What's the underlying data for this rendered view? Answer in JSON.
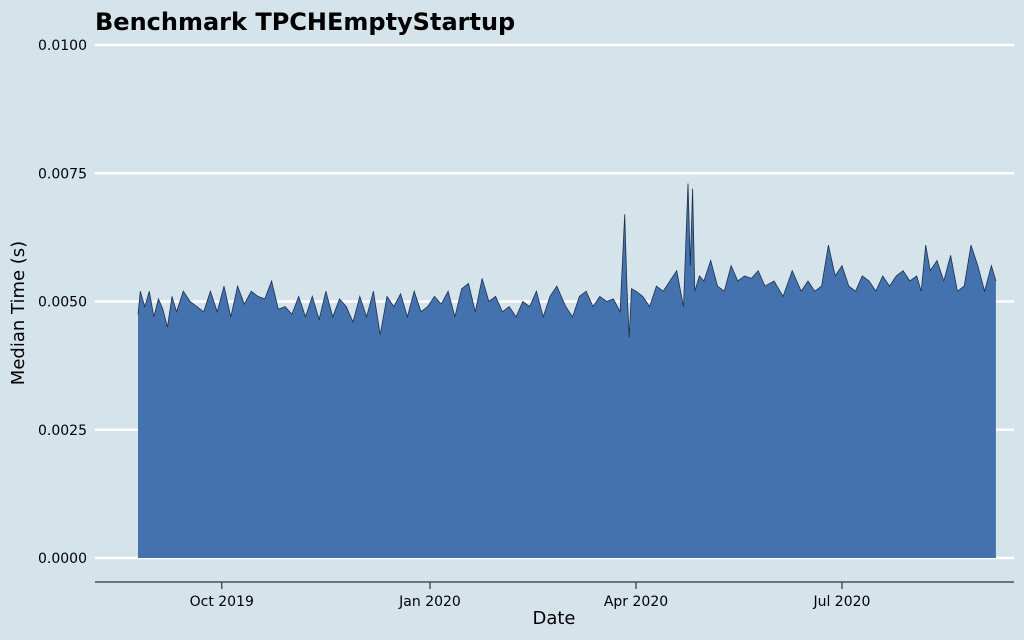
{
  "chart_data": {
    "type": "area",
    "title": "Benchmark TPCHEmptyStartup",
    "xlabel": "Date",
    "ylabel": "Median Time (s)",
    "xlim": [
      "2019-08-06",
      "2020-09-15"
    ],
    "ylim": [
      0,
      0.01
    ],
    "y_ticks": [
      {
        "value": 0.0,
        "label": "0.0000"
      },
      {
        "value": 0.0025,
        "label": "0.0025"
      },
      {
        "value": 0.005,
        "label": "0.0050"
      },
      {
        "value": 0.0075,
        "label": "0.0075"
      },
      {
        "value": 0.01,
        "label": "0.0100"
      }
    ],
    "x_ticks": [
      {
        "value": "2019-10-01",
        "label": "Oct 2019"
      },
      {
        "value": "2020-01-01",
        "label": "Jan 2020"
      },
      {
        "value": "2020-04-01",
        "label": "Apr 2020"
      },
      {
        "value": "2020-07-01",
        "label": "Jul 2020"
      }
    ],
    "grid": "horizontal",
    "fill_color": "#4472ae",
    "line_color": "#1f2f4a",
    "background_color": "#d5e4eb",
    "x": [
      "2019-08-25",
      "2019-08-26",
      "2019-08-27",
      "2019-08-28",
      "2019-08-30",
      "2019-09-01",
      "2019-09-03",
      "2019-09-05",
      "2019-09-07",
      "2019-09-09",
      "2019-09-11",
      "2019-09-14",
      "2019-09-17",
      "2019-09-20",
      "2019-09-23",
      "2019-09-26",
      "2019-09-29",
      "2019-10-02",
      "2019-10-05",
      "2019-10-08",
      "2019-10-11",
      "2019-10-14",
      "2019-10-17",
      "2019-10-20",
      "2019-10-23",
      "2019-10-26",
      "2019-10-29",
      "2019-11-01",
      "2019-11-04",
      "2019-11-07",
      "2019-11-10",
      "2019-11-13",
      "2019-11-16",
      "2019-11-19",
      "2019-11-22",
      "2019-11-25",
      "2019-11-28",
      "2019-12-01",
      "2019-12-04",
      "2019-12-07",
      "2019-12-10",
      "2019-12-13",
      "2019-12-16",
      "2019-12-19",
      "2019-12-22",
      "2019-12-25",
      "2019-12-28",
      "2019-12-31",
      "2020-01-03",
      "2020-01-06",
      "2020-01-09",
      "2020-01-12",
      "2020-01-15",
      "2020-01-18",
      "2020-01-21",
      "2020-01-24",
      "2020-01-27",
      "2020-01-30",
      "2020-02-02",
      "2020-02-05",
      "2020-02-08",
      "2020-02-11",
      "2020-02-14",
      "2020-02-17",
      "2020-02-20",
      "2020-02-23",
      "2020-02-26",
      "2020-03-01",
      "2020-03-04",
      "2020-03-07",
      "2020-03-10",
      "2020-03-13",
      "2020-03-16",
      "2020-03-19",
      "2020-03-22",
      "2020-03-25",
      "2020-03-27",
      "2020-03-28",
      "2020-03-29",
      "2020-03-30",
      "2020-04-01",
      "2020-04-04",
      "2020-04-07",
      "2020-04-10",
      "2020-04-13",
      "2020-04-16",
      "2020-04-19",
      "2020-04-22",
      "2020-04-24",
      "2020-04-25",
      "2020-04-26",
      "2020-04-27",
      "2020-04-29",
      "2020-05-01",
      "2020-05-04",
      "2020-05-07",
      "2020-05-10",
      "2020-05-13",
      "2020-05-16",
      "2020-05-19",
      "2020-05-22",
      "2020-05-25",
      "2020-05-28",
      "2020-06-01",
      "2020-06-05",
      "2020-06-09",
      "2020-06-13",
      "2020-06-16",
      "2020-06-19",
      "2020-06-22",
      "2020-06-25",
      "2020-06-28",
      "2020-07-01",
      "2020-07-04",
      "2020-07-07",
      "2020-07-10",
      "2020-07-13",
      "2020-07-16",
      "2020-07-19",
      "2020-07-22",
      "2020-07-25",
      "2020-07-28",
      "2020-07-31",
      "2020-08-03",
      "2020-08-05",
      "2020-08-07",
      "2020-08-09",
      "2020-08-12",
      "2020-08-15",
      "2020-08-18",
      "2020-08-21",
      "2020-08-24",
      "2020-08-27",
      "2020-08-30",
      "2020-09-02",
      "2020-09-05",
      "2020-09-07"
    ],
    "values": [
      0.00475,
      0.0052,
      0.00505,
      0.0049,
      0.0052,
      0.0047,
      0.00505,
      0.00485,
      0.0045,
      0.0051,
      0.0048,
      0.0052,
      0.005,
      0.0049,
      0.0048,
      0.0052,
      0.0048,
      0.0053,
      0.0047,
      0.0053,
      0.00495,
      0.0052,
      0.0051,
      0.00505,
      0.0054,
      0.00485,
      0.0049,
      0.00475,
      0.0051,
      0.0047,
      0.0051,
      0.00465,
      0.0052,
      0.0047,
      0.00505,
      0.0049,
      0.0046,
      0.0051,
      0.0047,
      0.0052,
      0.00435,
      0.0051,
      0.0049,
      0.00515,
      0.0047,
      0.0052,
      0.0048,
      0.0049,
      0.0051,
      0.00495,
      0.0052,
      0.0047,
      0.00525,
      0.00535,
      0.0048,
      0.00545,
      0.005,
      0.0051,
      0.0048,
      0.0049,
      0.0047,
      0.005,
      0.0049,
      0.0052,
      0.0047,
      0.0051,
      0.0053,
      0.0049,
      0.0047,
      0.0051,
      0.0052,
      0.0049,
      0.0051,
      0.005,
      0.00505,
      0.0048,
      0.0067,
      0.0053,
      0.0043,
      0.00525,
      0.0052,
      0.0051,
      0.0049,
      0.0053,
      0.0052,
      0.0054,
      0.0056,
      0.0049,
      0.0073,
      0.0057,
      0.0072,
      0.0052,
      0.0055,
      0.0054,
      0.0058,
      0.0053,
      0.0052,
      0.0057,
      0.0054,
      0.0055,
      0.00545,
      0.0056,
      0.0053,
      0.0054,
      0.0051,
      0.0056,
      0.0052,
      0.0054,
      0.0052,
      0.0053,
      0.0061,
      0.0055,
      0.0057,
      0.0053,
      0.0052,
      0.0055,
      0.0054,
      0.0052,
      0.0055,
      0.0053,
      0.0055,
      0.0056,
      0.0054,
      0.0055,
      0.0052,
      0.0061,
      0.0056,
      0.0058,
      0.0054,
      0.0059,
      0.0052,
      0.0053,
      0.0061,
      0.0057,
      0.0052,
      0.0057,
      0.0054
    ]
  }
}
